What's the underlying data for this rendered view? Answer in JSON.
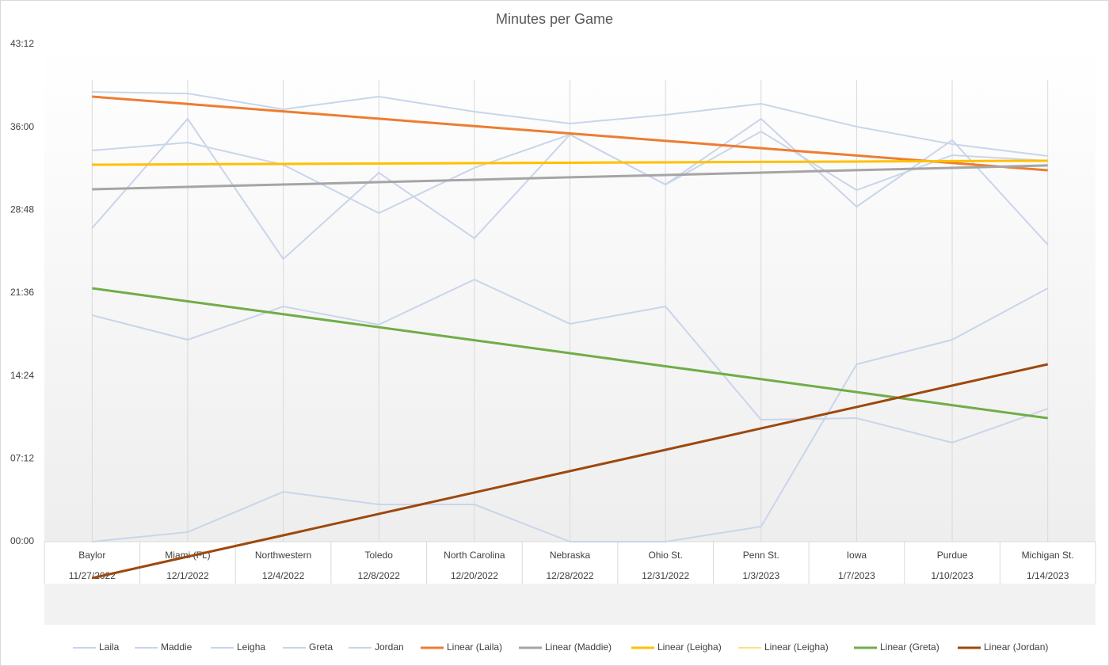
{
  "chart_data": {
    "type": "line",
    "title": "Minutes per Game",
    "categories": [
      "Baylor",
      "Miami (FL)",
      "Northwestern",
      "Toledo",
      "North Carolina",
      "Nebraska",
      "Ohio St.",
      "Penn St.",
      "Iowa",
      "Purdue",
      "Michigan St."
    ],
    "dates": [
      "11/27/2022",
      "12/1/2022",
      "12/4/2022",
      "12/8/2022",
      "12/20/2022",
      "12/28/2022",
      "12/31/2022",
      "1/3/2023",
      "1/7/2023",
      "1/10/2023",
      "1/14/2023"
    ],
    "ylim": [
      0,
      43.2
    ],
    "yticks": [
      {
        "value": 0,
        "label": "00:00"
      },
      {
        "value": 7.2,
        "label": "07:12"
      },
      {
        "value": 14.4,
        "label": "14:24"
      },
      {
        "value": 21.6,
        "label": "21:36"
      },
      {
        "value": 28.8,
        "label": "28:48"
      },
      {
        "value": 36,
        "label": "36:00"
      },
      {
        "value": 43.2,
        "label": "43:12"
      }
    ],
    "grid": "vertical",
    "legend": "bottom",
    "series": [
      {
        "name": "Laila",
        "color": "#c9d5ea",
        "width": 2,
        "values": [
          39.07,
          38.93,
          37.56,
          38.66,
          37.35,
          36.32,
          37.08,
          38.04,
          36.05,
          34.53,
          33.5
        ]
      },
      {
        "name": "Maddie",
        "color": "#c9d5ea",
        "width": 2,
        "values": [
          27.24,
          36.73,
          24.55,
          32.05,
          26.35,
          35.36,
          31.02,
          36.73,
          29.1,
          34.88,
          25.8
        ]
      },
      {
        "name": "Leigha",
        "color": "#c9d5ea",
        "width": 2,
        "values": [
          33.98,
          34.67,
          32.74,
          28.54,
          32.47,
          35.36,
          31.02,
          35.63,
          30.54,
          33.57,
          33.09
        ]
      },
      {
        "name": "Greta",
        "color": "#c9d5ea",
        "width": 2,
        "values": [
          19.67,
          17.54,
          20.43,
          18.85,
          22.77,
          18.92,
          20.43,
          10.59,
          10.73,
          8.6,
          11.55
        ]
      },
      {
        "name": "Jordan",
        "color": "#c9d5ea",
        "width": 2,
        "values": [
          0,
          0.83,
          4.33,
          3.23,
          3.23,
          0,
          0,
          1.31,
          15.41,
          17.54,
          22.01
        ]
      },
      {
        "name": "Linear (Laila)",
        "color": "#ed7d31",
        "width": 3,
        "values": [
          38.66,
          38.02,
          37.38,
          36.74,
          36.1,
          35.46,
          34.82,
          34.18,
          33.54,
          32.9,
          32.26
        ]
      },
      {
        "name": "Linear (Maddie)",
        "color": "#a5a5a5",
        "width": 3,
        "values": [
          30.61,
          30.82,
          31.02,
          31.23,
          31.44,
          31.65,
          31.85,
          32.06,
          32.27,
          32.47,
          32.68
        ]
      },
      {
        "name": "Linear (Leigha)",
        "color": "#ffc000",
        "width": 3,
        "values": [
          32.74,
          32.78,
          32.81,
          32.85,
          32.88,
          32.92,
          32.95,
          32.99,
          33.02,
          33.06,
          33.09
        ]
      },
      {
        "name": "Linear (Leigha)",
        "color": "#ffc000",
        "width": 1,
        "values": [
          32.74,
          32.78,
          32.81,
          32.85,
          32.88,
          32.92,
          32.95,
          32.99,
          33.02,
          33.06,
          33.09
        ]
      },
      {
        "name": "Linear (Greta)",
        "color": "#70ad47",
        "width": 3,
        "values": [
          22.01,
          20.88,
          19.76,
          18.63,
          17.5,
          16.37,
          15.24,
          14.12,
          12.99,
          11.86,
          10.73
        ]
      },
      {
        "name": "Linear (Jordan)",
        "color": "#9e480e",
        "width": 3,
        "values": [
          -3.16,
          -1.3,
          0.55,
          2.41,
          4.27,
          6.13,
          7.98,
          9.84,
          11.7,
          13.56,
          15.41
        ]
      }
    ]
  }
}
